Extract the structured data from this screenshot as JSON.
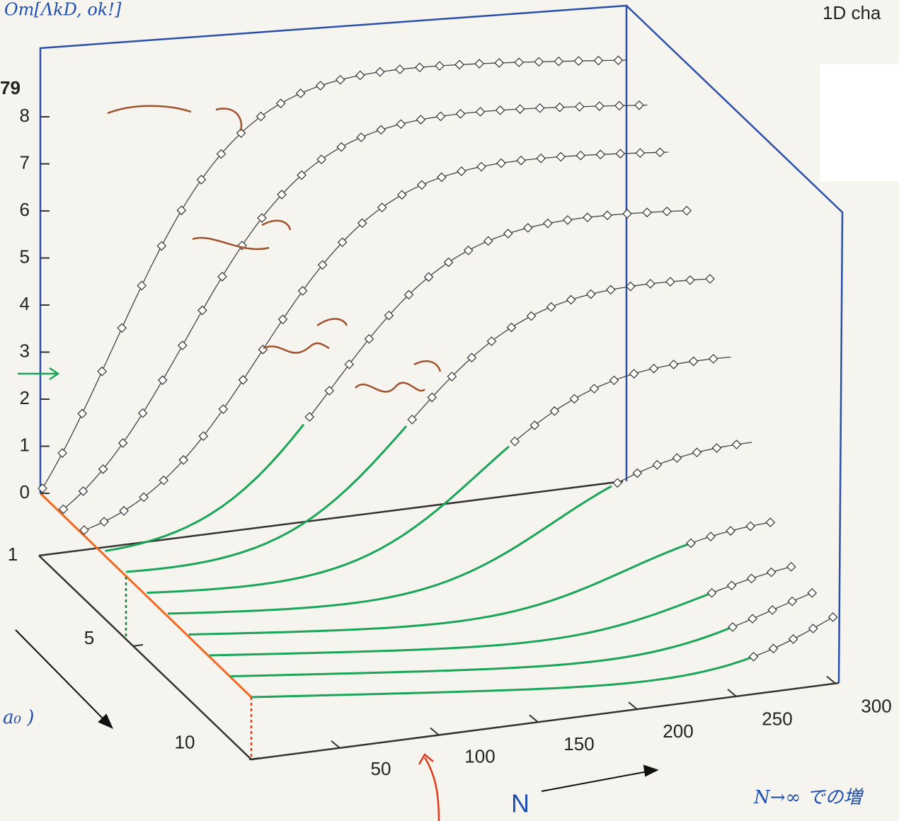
{
  "header": {
    "note_top_left": "Om[ΛkD, ok!]",
    "note_top_right": "1D cha",
    "left_label": "79"
  },
  "axes": {
    "z_ticks": [
      0,
      1,
      2,
      3,
      4,
      5,
      6,
      7,
      8
    ],
    "depth_ticks": [
      1,
      5,
      10
    ],
    "n_ticks": [
      50,
      100,
      150,
      200,
      250,
      300
    ],
    "n_label": "N"
  },
  "annotations": {
    "bottom_right": "N→∞ での増",
    "left_formula": "a₀ )"
  }
}
